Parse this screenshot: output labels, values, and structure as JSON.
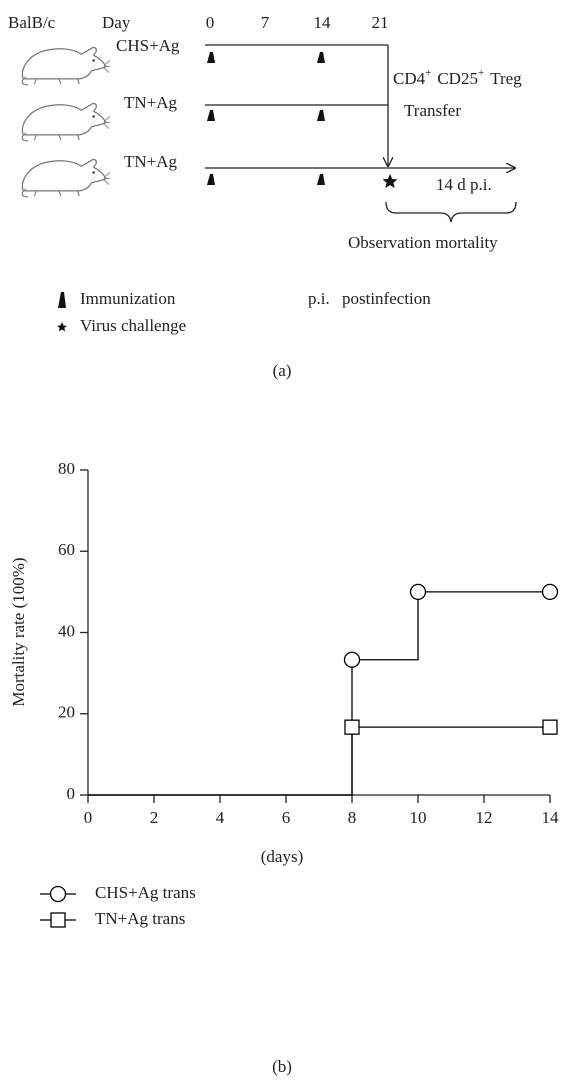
{
  "diagram": {
    "strain": "BalB/c",
    "day_heading": "Day",
    "day_labels": [
      "0",
      "7",
      "14",
      "21"
    ],
    "groups": [
      "CHS+Ag",
      "TN+Ag",
      "TN+Ag"
    ],
    "treg": [
      {
        "base": "CD4",
        "sup": "+"
      },
      {
        "base": "CD25",
        "sup": "+"
      },
      {
        "base": "Treg"
      }
    ],
    "transfer": "Transfer",
    "period": "14 d p.i.",
    "observation": "Observation mortality",
    "legend": {
      "immunization": "Immunization",
      "virus": "Virus challenge",
      "abbr": "p.i.",
      "abbr_meaning": "postinfection"
    },
    "caption": "(a)"
  },
  "chart_data": {
    "type": "line",
    "step": "post",
    "xlabel": "(days)",
    "ylabel": "Mortality rate (100%)",
    "xlim": [
      0,
      14
    ],
    "xticks": [
      0,
      2,
      4,
      6,
      8,
      10,
      12,
      14
    ],
    "ylim": [
      0,
      80
    ],
    "yticks": [
      0,
      20,
      40,
      60,
      80
    ],
    "series": [
      {
        "name": "CHS+Ag trans",
        "color": "#000000",
        "marker": "circle",
        "x": [
          0,
          8,
          10,
          14
        ],
        "values": [
          0,
          33.3,
          50,
          50
        ],
        "markers": [
          false,
          true,
          true,
          true
        ]
      },
      {
        "name": "TN+Ag trans",
        "color": "#000000",
        "marker": "square",
        "x": [
          0,
          8,
          14
        ],
        "values": [
          0,
          16.7,
          16.7
        ],
        "markers": [
          false,
          true,
          true
        ]
      }
    ],
    "caption": "(b)"
  }
}
